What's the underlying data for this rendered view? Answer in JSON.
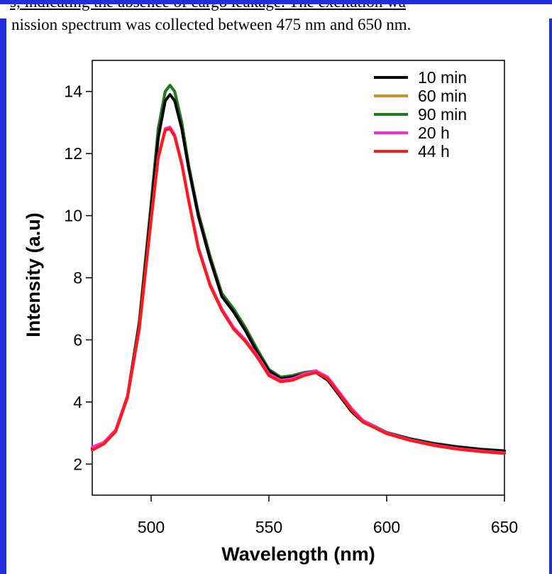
{
  "document": {
    "line1": "s, indicating the absence of cargo leakage. The excitation wa",
    "line2": "nission spectrum was collected between 475 nm and 650 nm."
  },
  "colors": {
    "accent_border": "#1f2fe0"
  },
  "chart_data": {
    "type": "line",
    "title": "",
    "xlabel": "Wavelength (nm)",
    "ylabel": "Intensity (a.u)",
    "xlim": [
      475,
      650
    ],
    "ylim": [
      1,
      15
    ],
    "xticks": [
      500,
      550,
      600,
      650
    ],
    "yticks": [
      2,
      4,
      6,
      8,
      10,
      12,
      14
    ],
    "grid": false,
    "legend_position": "top-right",
    "series": [
      {
        "name": "10 min",
        "color": "#000000",
        "x": [
          475,
          480,
          485,
          490,
          495,
          500,
          503,
          506,
          508,
          510,
          513,
          516,
          520,
          525,
          530,
          535,
          540,
          545,
          550,
          555,
          560,
          565,
          570,
          575,
          580,
          585,
          590,
          600,
          610,
          620,
          630,
          640,
          650
        ],
        "y": [
          2.5,
          2.7,
          3.1,
          4.2,
          6.5,
          10.2,
          12.5,
          13.7,
          13.9,
          13.7,
          12.8,
          11.5,
          10.0,
          8.6,
          7.4,
          6.9,
          6.3,
          5.6,
          5.0,
          4.75,
          4.8,
          4.9,
          4.95,
          4.7,
          4.2,
          3.7,
          3.35,
          3.0,
          2.8,
          2.65,
          2.55,
          2.47,
          2.42
        ]
      },
      {
        "name": "60 min",
        "color": "#d4901e",
        "x": [
          475,
          480,
          485,
          490,
          495,
          500,
          503,
          506,
          508,
          510,
          513,
          516,
          520,
          525,
          530,
          535,
          540,
          545,
          550,
          555,
          560,
          565,
          570,
          575,
          580,
          585,
          590,
          600,
          610,
          620,
          630,
          640,
          650
        ],
        "y": [
          2.5,
          2.7,
          3.1,
          4.2,
          6.6,
          10.4,
          12.8,
          14.0,
          14.2,
          14.0,
          13.0,
          11.6,
          10.1,
          8.7,
          7.5,
          7.0,
          6.4,
          5.7,
          5.05,
          4.8,
          4.85,
          4.95,
          5.0,
          4.78,
          4.3,
          3.75,
          3.4,
          3.02,
          2.82,
          2.67,
          2.56,
          2.48,
          2.43
        ]
      },
      {
        "name": "90 min",
        "color": "#1e7a1e",
        "x": [
          475,
          480,
          485,
          490,
          495,
          500,
          503,
          506,
          508,
          510,
          513,
          516,
          520,
          525,
          530,
          535,
          540,
          545,
          550,
          555,
          560,
          565,
          570,
          575,
          580,
          585,
          590,
          600,
          610,
          620,
          630,
          640,
          650
        ],
        "y": [
          2.5,
          2.7,
          3.1,
          4.2,
          6.6,
          10.4,
          12.8,
          14.0,
          14.2,
          14.0,
          13.0,
          11.6,
          10.1,
          8.7,
          7.5,
          7.0,
          6.4,
          5.7,
          5.05,
          4.8,
          4.85,
          4.95,
          5.0,
          4.78,
          4.3,
          3.75,
          3.4,
          3.02,
          2.82,
          2.67,
          2.56,
          2.48,
          2.43
        ]
      },
      {
        "name": "20 h",
        "color": "#ff2ad4",
        "x": [
          475,
          480,
          485,
          490,
          495,
          500,
          503,
          506,
          508,
          510,
          513,
          516,
          520,
          525,
          530,
          535,
          540,
          545,
          550,
          555,
          560,
          565,
          570,
          575,
          580,
          585,
          590,
          600,
          610,
          620,
          630,
          640,
          650
        ],
        "y": [
          2.55,
          2.7,
          3.1,
          4.2,
          6.4,
          9.9,
          11.9,
          12.8,
          12.85,
          12.6,
          11.7,
          10.5,
          9.0,
          7.8,
          7.0,
          6.4,
          6.0,
          5.5,
          4.9,
          4.7,
          4.75,
          4.9,
          5.0,
          4.8,
          4.3,
          3.8,
          3.4,
          3.0,
          2.78,
          2.62,
          2.5,
          2.42,
          2.36
        ]
      },
      {
        "name": "44 h",
        "color": "#ff1a1a",
        "x": [
          475,
          480,
          485,
          490,
          495,
          500,
          503,
          506,
          508,
          510,
          513,
          516,
          520,
          525,
          530,
          535,
          540,
          545,
          550,
          555,
          560,
          565,
          570,
          575,
          580,
          585,
          590,
          600,
          610,
          620,
          630,
          640,
          650
        ],
        "y": [
          2.45,
          2.65,
          3.05,
          4.15,
          6.35,
          9.85,
          11.85,
          12.75,
          12.8,
          12.55,
          11.65,
          10.45,
          8.95,
          7.75,
          6.95,
          6.35,
          5.95,
          5.45,
          4.85,
          4.65,
          4.7,
          4.85,
          4.95,
          4.75,
          4.25,
          3.75,
          3.35,
          2.98,
          2.76,
          2.6,
          2.48,
          2.4,
          2.34
        ]
      }
    ]
  }
}
